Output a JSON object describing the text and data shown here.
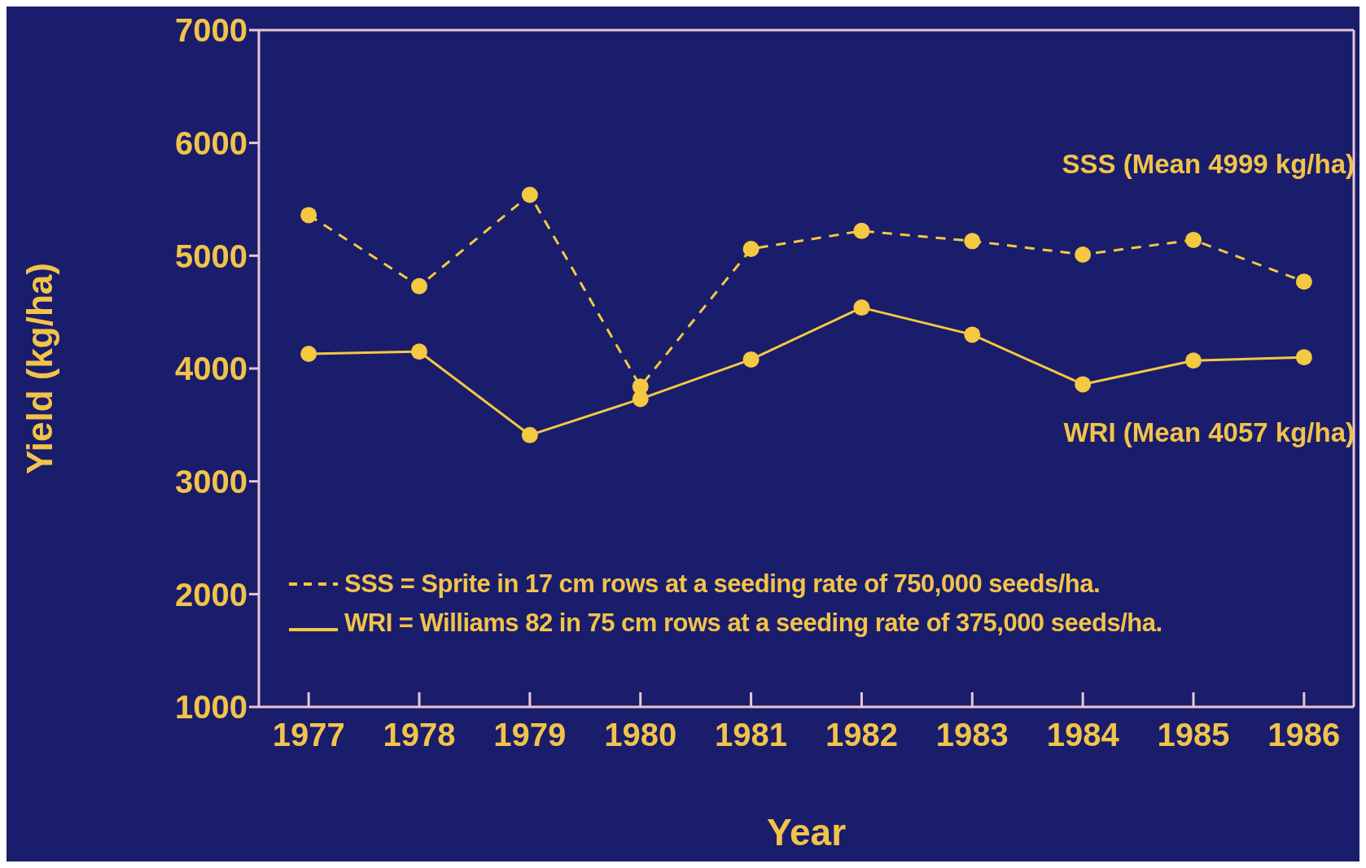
{
  "chart_data": {
    "type": "line",
    "xlabel": "Year",
    "ylabel": "Yield (kg/ha)",
    "categories": [
      "1977",
      "1978",
      "1979",
      "1980",
      "1981",
      "1982",
      "1983",
      "1984",
      "1985",
      "1986"
    ],
    "series": [
      {
        "name": "SSS = Sprite in 17 cm rows at a seeding rate of 750,000 seeds/ha.",
        "color": "#f5c842",
        "line_style": "dashed",
        "values": [
          5360,
          4730,
          5540,
          3840,
          5060,
          5220,
          5130,
          5010,
          5140,
          4770
        ]
      },
      {
        "name": "WRI = Williams 82 in 75 cm rows at a seeding rate of 375,000 seeds/ha.",
        "color": "#f5c842",
        "line_style": "solid",
        "values": [
          4130,
          4150,
          3410,
          3730,
          4080,
          4540,
          4300,
          3860,
          4070,
          4100
        ]
      }
    ],
    "ylim": [
      1000,
      7000
    ],
    "yticks": [
      1000,
      2000,
      3000,
      4000,
      5000,
      6000,
      7000
    ],
    "grid": false,
    "legend": "bottom left",
    "marker": "circle",
    "annotations": [
      "SSS (Mean 4999 kg/ha)",
      "WRI (Mean 4057 kg/ha)"
    ]
  }
}
